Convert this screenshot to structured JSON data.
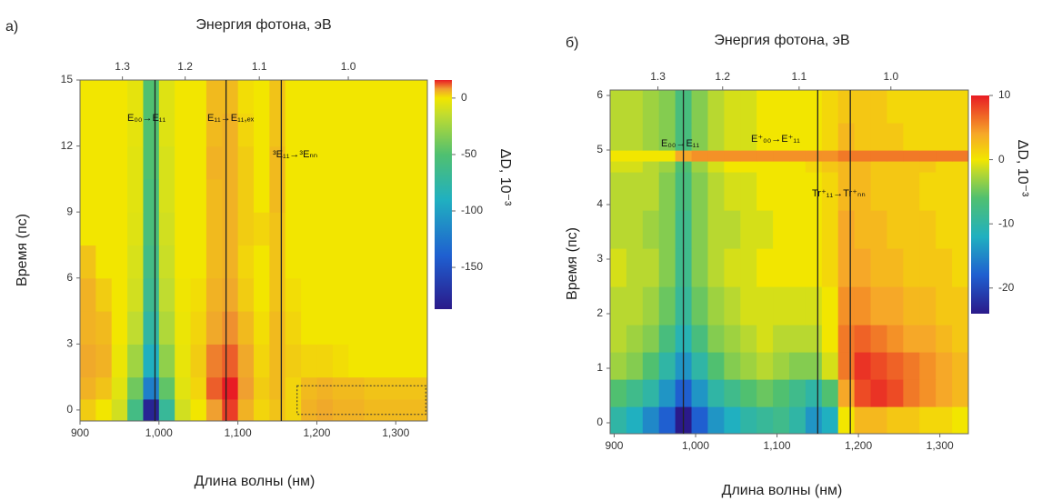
{
  "chart_data": [
    {
      "type": "heatmap",
      "panel": "а)",
      "x2label": "Энергия фотона, эВ",
      "xlabel": "Длина волны  (нм)",
      "ylabel": "Время (пс)",
      "zlabel": "ΔD, 10⁻³",
      "xlim": [
        900,
        1340
      ],
      "ylim": [
        -0.5,
        15
      ],
      "zlim": [
        -187,
        16
      ],
      "xticks": [
        900,
        {
          "value": 1000,
          "label": "1,000"
        },
        {
          "value": 1100,
          "label": "1,100"
        },
        {
          "value": 1200,
          "label": "1,200"
        },
        {
          "value": 1300,
          "label": "1,300"
        }
      ],
      "yticks": [
        0,
        3,
        6,
        9,
        12,
        15
      ],
      "x2ticks": [
        1.3,
        1.2,
        1.1,
        {
          "value": 1.0,
          "label": "1.0"
        }
      ],
      "zticks": [
        0,
        -50,
        -100,
        -150
      ],
      "vlines": [
        995,
        1085,
        1155
      ],
      "annotations": [
        "E₀₀→E₁₁",
        "E₁₁→E₁₁,ₑₓ",
        "³E₁₁→³Eₙₙ"
      ],
      "colorscale": [
        [
          -187,
          "#2a1a8a"
        ],
        [
          -140,
          "#1f5fd0"
        ],
        [
          -90,
          "#20b0c0"
        ],
        [
          -50,
          "#50c070"
        ],
        [
          -15,
          "#c0dc30"
        ],
        [
          0,
          "#f2e600"
        ],
        [
          8,
          "#f0a030"
        ],
        [
          16,
          "#e81c24"
        ]
      ],
      "xbins": [
        900,
        920,
        940,
        960,
        980,
        1000,
        1020,
        1040,
        1060,
        1080,
        1100,
        1120,
        1140,
        1160,
        1180,
        1200,
        1220,
        1240,
        1260,
        1280,
        1300,
        1320,
        1340
      ],
      "ybins": [
        -0.5,
        0.5,
        1.5,
        3,
        4.5,
        6,
        7.5,
        9,
        10.5,
        12,
        13.5,
        15
      ],
      "z": [
        [
          3,
          0,
          -10,
          -60,
          -180,
          -70,
          -10,
          0,
          8,
          14,
          6,
          2,
          4,
          2,
          6,
          7,
          6,
          6,
          5,
          5,
          5,
          5
        ],
        [
          6,
          4,
          -5,
          -40,
          -120,
          -45,
          -5,
          2,
          12,
          16,
          8,
          3,
          5,
          2,
          5,
          6,
          5,
          5,
          4,
          4,
          4,
          4
        ],
        [
          7,
          6,
          -2,
          -25,
          -90,
          -30,
          -3,
          3,
          10,
          12,
          7,
          2,
          5,
          3,
          2,
          2,
          1,
          0,
          0,
          0,
          0,
          0
        ],
        [
          6,
          5,
          0,
          -15,
          -75,
          -20,
          -2,
          2,
          7,
          9,
          5,
          1,
          5,
          2,
          0,
          0,
          0,
          0,
          0,
          0,
          0,
          0
        ],
        [
          6,
          3,
          0,
          -10,
          -65,
          -15,
          -1,
          1,
          6,
          7,
          3,
          0,
          4,
          1,
          0,
          0,
          0,
          0,
          0,
          0,
          0,
          0
        ],
        [
          4,
          0,
          0,
          -8,
          -60,
          -12,
          0,
          0,
          5,
          6,
          2,
          0,
          4,
          0,
          0,
          0,
          0,
          0,
          0,
          0,
          0,
          0
        ],
        [
          0,
          0,
          0,
          -6,
          -55,
          -10,
          0,
          0,
          5,
          6,
          3,
          2,
          4,
          0,
          0,
          0,
          0,
          0,
          0,
          0,
          0,
          0
        ],
        [
          0,
          0,
          0,
          -5,
          -55,
          -8,
          0,
          0,
          5,
          6,
          3,
          0,
          5,
          0,
          0,
          0,
          0,
          0,
          0,
          0,
          0,
          0
        ],
        [
          0,
          0,
          0,
          -5,
          -50,
          -8,
          0,
          0,
          6,
          6,
          3,
          0,
          5,
          0,
          0,
          0,
          0,
          0,
          0,
          0,
          0,
          0
        ],
        [
          0,
          0,
          0,
          -4,
          -50,
          -6,
          0,
          0,
          5,
          6,
          2,
          0,
          4,
          0,
          0,
          0,
          0,
          0,
          0,
          0,
          0,
          0
        ],
        [
          0,
          0,
          0,
          -4,
          -50,
          -6,
          0,
          0,
          5,
          5,
          1,
          0,
          4,
          0,
          0,
          0,
          0,
          0,
          0,
          0,
          0,
          0
        ]
      ]
    },
    {
      "type": "heatmap",
      "panel": "б)",
      "x2label": "Энергия фотона, эВ",
      "xlabel": "Длина волны (нм)",
      "ylabel": "Время (пс)",
      "zlabel": "ΔD, 10⁻³",
      "xlim": [
        895,
        1335
      ],
      "ylim": [
        -0.2,
        6.1
      ],
      "zlim": [
        -24,
        10
      ],
      "xticks": [
        900,
        {
          "value": 1000,
          "label": "1,000"
        },
        {
          "value": 1100,
          "label": "1,100"
        },
        {
          "value": 1200,
          "label": "1,200"
        },
        {
          "value": 1300,
          "label": "1,300"
        }
      ],
      "yticks": [
        0,
        1,
        2,
        3,
        4,
        5,
        6
      ],
      "x2ticks": [
        1.3,
        1.2,
        1.1,
        {
          "value": 1.0,
          "label": "1.0"
        }
      ],
      "zticks": [
        10,
        0,
        -10,
        -20
      ],
      "vlines": [
        985,
        1150,
        1190
      ],
      "annotations": [
        "E₀₀→E₁₁",
        "E⁺₀₀→E⁺₁₁",
        "Tr⁺₁₁→Tr⁺ₙₙ"
      ],
      "colorscale": [
        [
          -24,
          "#2a1a8a"
        ],
        [
          -18,
          "#1f5fd0"
        ],
        [
          -12,
          "#20b0c0"
        ],
        [
          -6,
          "#50c070"
        ],
        [
          -2,
          "#b8d830"
        ],
        [
          0,
          "#f2e600"
        ],
        [
          4,
          "#f6a828"
        ],
        [
          10,
          "#e81c24"
        ]
      ],
      "xbins": [
        895,
        915,
        935,
        955,
        975,
        995,
        1015,
        1035,
        1055,
        1075,
        1095,
        1115,
        1135,
        1155,
        1175,
        1195,
        1215,
        1235,
        1255,
        1275,
        1295,
        1315,
        1335
      ],
      "ybins": [
        -0.2,
        0.3,
        0.8,
        1.3,
        1.8,
        2.5,
        3.2,
        3.9,
        4.6,
        4.8,
        5.0,
        5.5,
        6.1
      ],
      "z": [
        [
          -10,
          -12,
          -15,
          -18,
          -24,
          -18,
          -14,
          -12,
          -10,
          -9,
          -8,
          -10,
          -14,
          -12,
          0,
          3,
          3,
          2,
          2,
          1,
          1,
          0
        ],
        [
          -6,
          -8,
          -10,
          -14,
          -18,
          -14,
          -10,
          -8,
          -6,
          -5,
          -6,
          -8,
          -10,
          -6,
          4,
          8,
          9,
          8,
          6,
          5,
          4,
          3
        ],
        [
          -3,
          -4,
          -6,
          -10,
          -14,
          -10,
          -6,
          -4,
          -3,
          -2,
          -3,
          -4,
          -4,
          -1,
          6,
          9,
          8,
          7,
          6,
          5,
          4,
          3
        ],
        [
          -2,
          -3,
          -4,
          -7,
          -11,
          -7,
          -4,
          -3,
          -2,
          -1,
          -2,
          -2,
          -2,
          0,
          6,
          7,
          6,
          5,
          4,
          4,
          3,
          2
        ],
        [
          -2,
          -2,
          -3,
          -5,
          -9,
          -5,
          -3,
          -2,
          -1,
          -1,
          -1,
          -1,
          -1,
          0,
          5,
          5,
          4,
          4,
          3,
          3,
          2,
          2
        ],
        [
          -1,
          -2,
          -2,
          -4,
          -8,
          -4,
          -2,
          -1,
          -1,
          0,
          0,
          0,
          0,
          1,
          4,
          4,
          3,
          3,
          2,
          2,
          2,
          1
        ],
        [
          -2,
          -2,
          -3,
          -4,
          -8,
          -4,
          -2,
          -2,
          -1,
          -1,
          0,
          0,
          0,
          1,
          4,
          3,
          3,
          2,
          2,
          2,
          1,
          1
        ],
        [
          -2,
          -2,
          -2,
          -4,
          -7,
          -4,
          -2,
          -1,
          -1,
          0,
          0,
          0,
          0,
          1,
          3,
          3,
          2,
          2,
          2,
          1,
          1,
          1
        ],
        [
          -1,
          -1,
          -2,
          -3,
          -6,
          -3,
          -1,
          0,
          0,
          0,
          0,
          0,
          1,
          2,
          3,
          3,
          2,
          2,
          2,
          2,
          1,
          1
        ],
        [
          0,
          0,
          0,
          0,
          4,
          5,
          5,
          5,
          5,
          5,
          5,
          5,
          5,
          5,
          6,
          6,
          6,
          6,
          6,
          6,
          6,
          6
        ],
        [
          -2,
          -2,
          -3,
          -4,
          -7,
          -4,
          -2,
          -1,
          -1,
          0,
          0,
          0,
          0,
          1,
          3,
          2,
          2,
          2,
          1,
          1,
          1,
          1
        ],
        [
          -2,
          -2,
          -3,
          -4,
          -7,
          -4,
          -2,
          -1,
          -1,
          0,
          0,
          0,
          0,
          1,
          2,
          2,
          2,
          1,
          1,
          1,
          1,
          1
        ]
      ]
    }
  ]
}
